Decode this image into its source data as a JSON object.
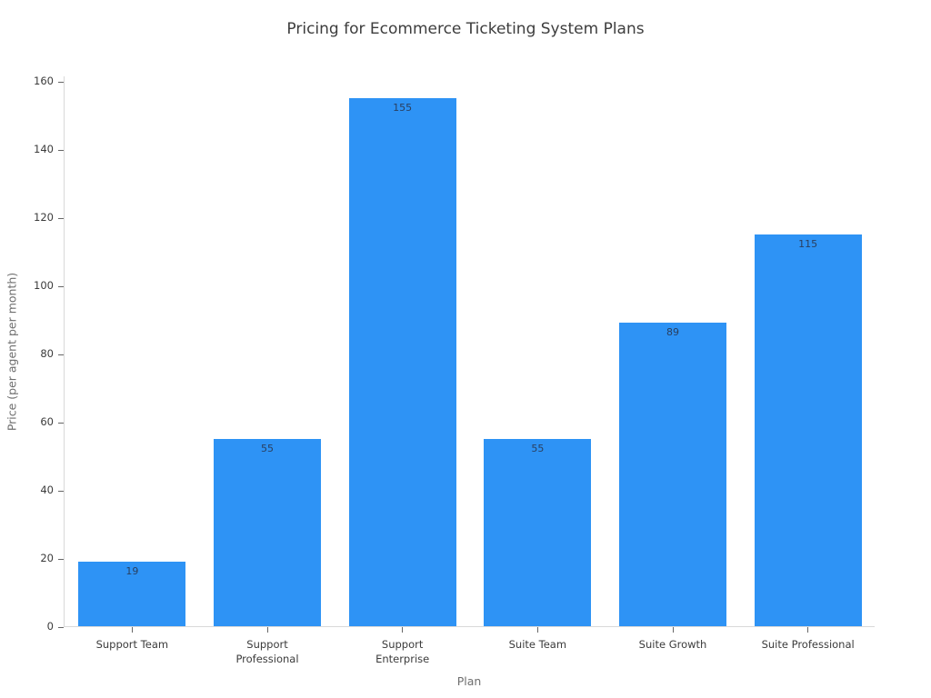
{
  "chart_data": {
    "type": "bar",
    "title": "Pricing for Ecommerce Ticketing System Plans",
    "xlabel": "Plan",
    "ylabel": "Price (per agent per month)",
    "categories": [
      "Support Team",
      "Support Professional",
      "Support Enterprise",
      "Suite Team",
      "Suite Growth",
      "Suite Professional"
    ],
    "values": [
      19,
      55,
      155,
      55,
      89,
      115
    ],
    "bar_value_labels": [
      "19",
      "55",
      "155",
      "55",
      "89",
      "115"
    ],
    "yticks": [
      0,
      20,
      40,
      60,
      80,
      100,
      120,
      140,
      160
    ],
    "ylim": [
      0,
      161.6
    ],
    "grid": false,
    "legend": "none",
    "bar_labels_position": "inside-top",
    "colors": {
      "bar_fill": "#2e93f5",
      "bar_value_label": "#2a3f5f",
      "title_text": "#3d3d3d",
      "tick_label_text": "#3b3b3b",
      "axis_label_text": "#6e6e6e",
      "axis_spine": "#d9d9d9",
      "tick_mark": "#666666",
      "background": "#ffffff"
    }
  }
}
